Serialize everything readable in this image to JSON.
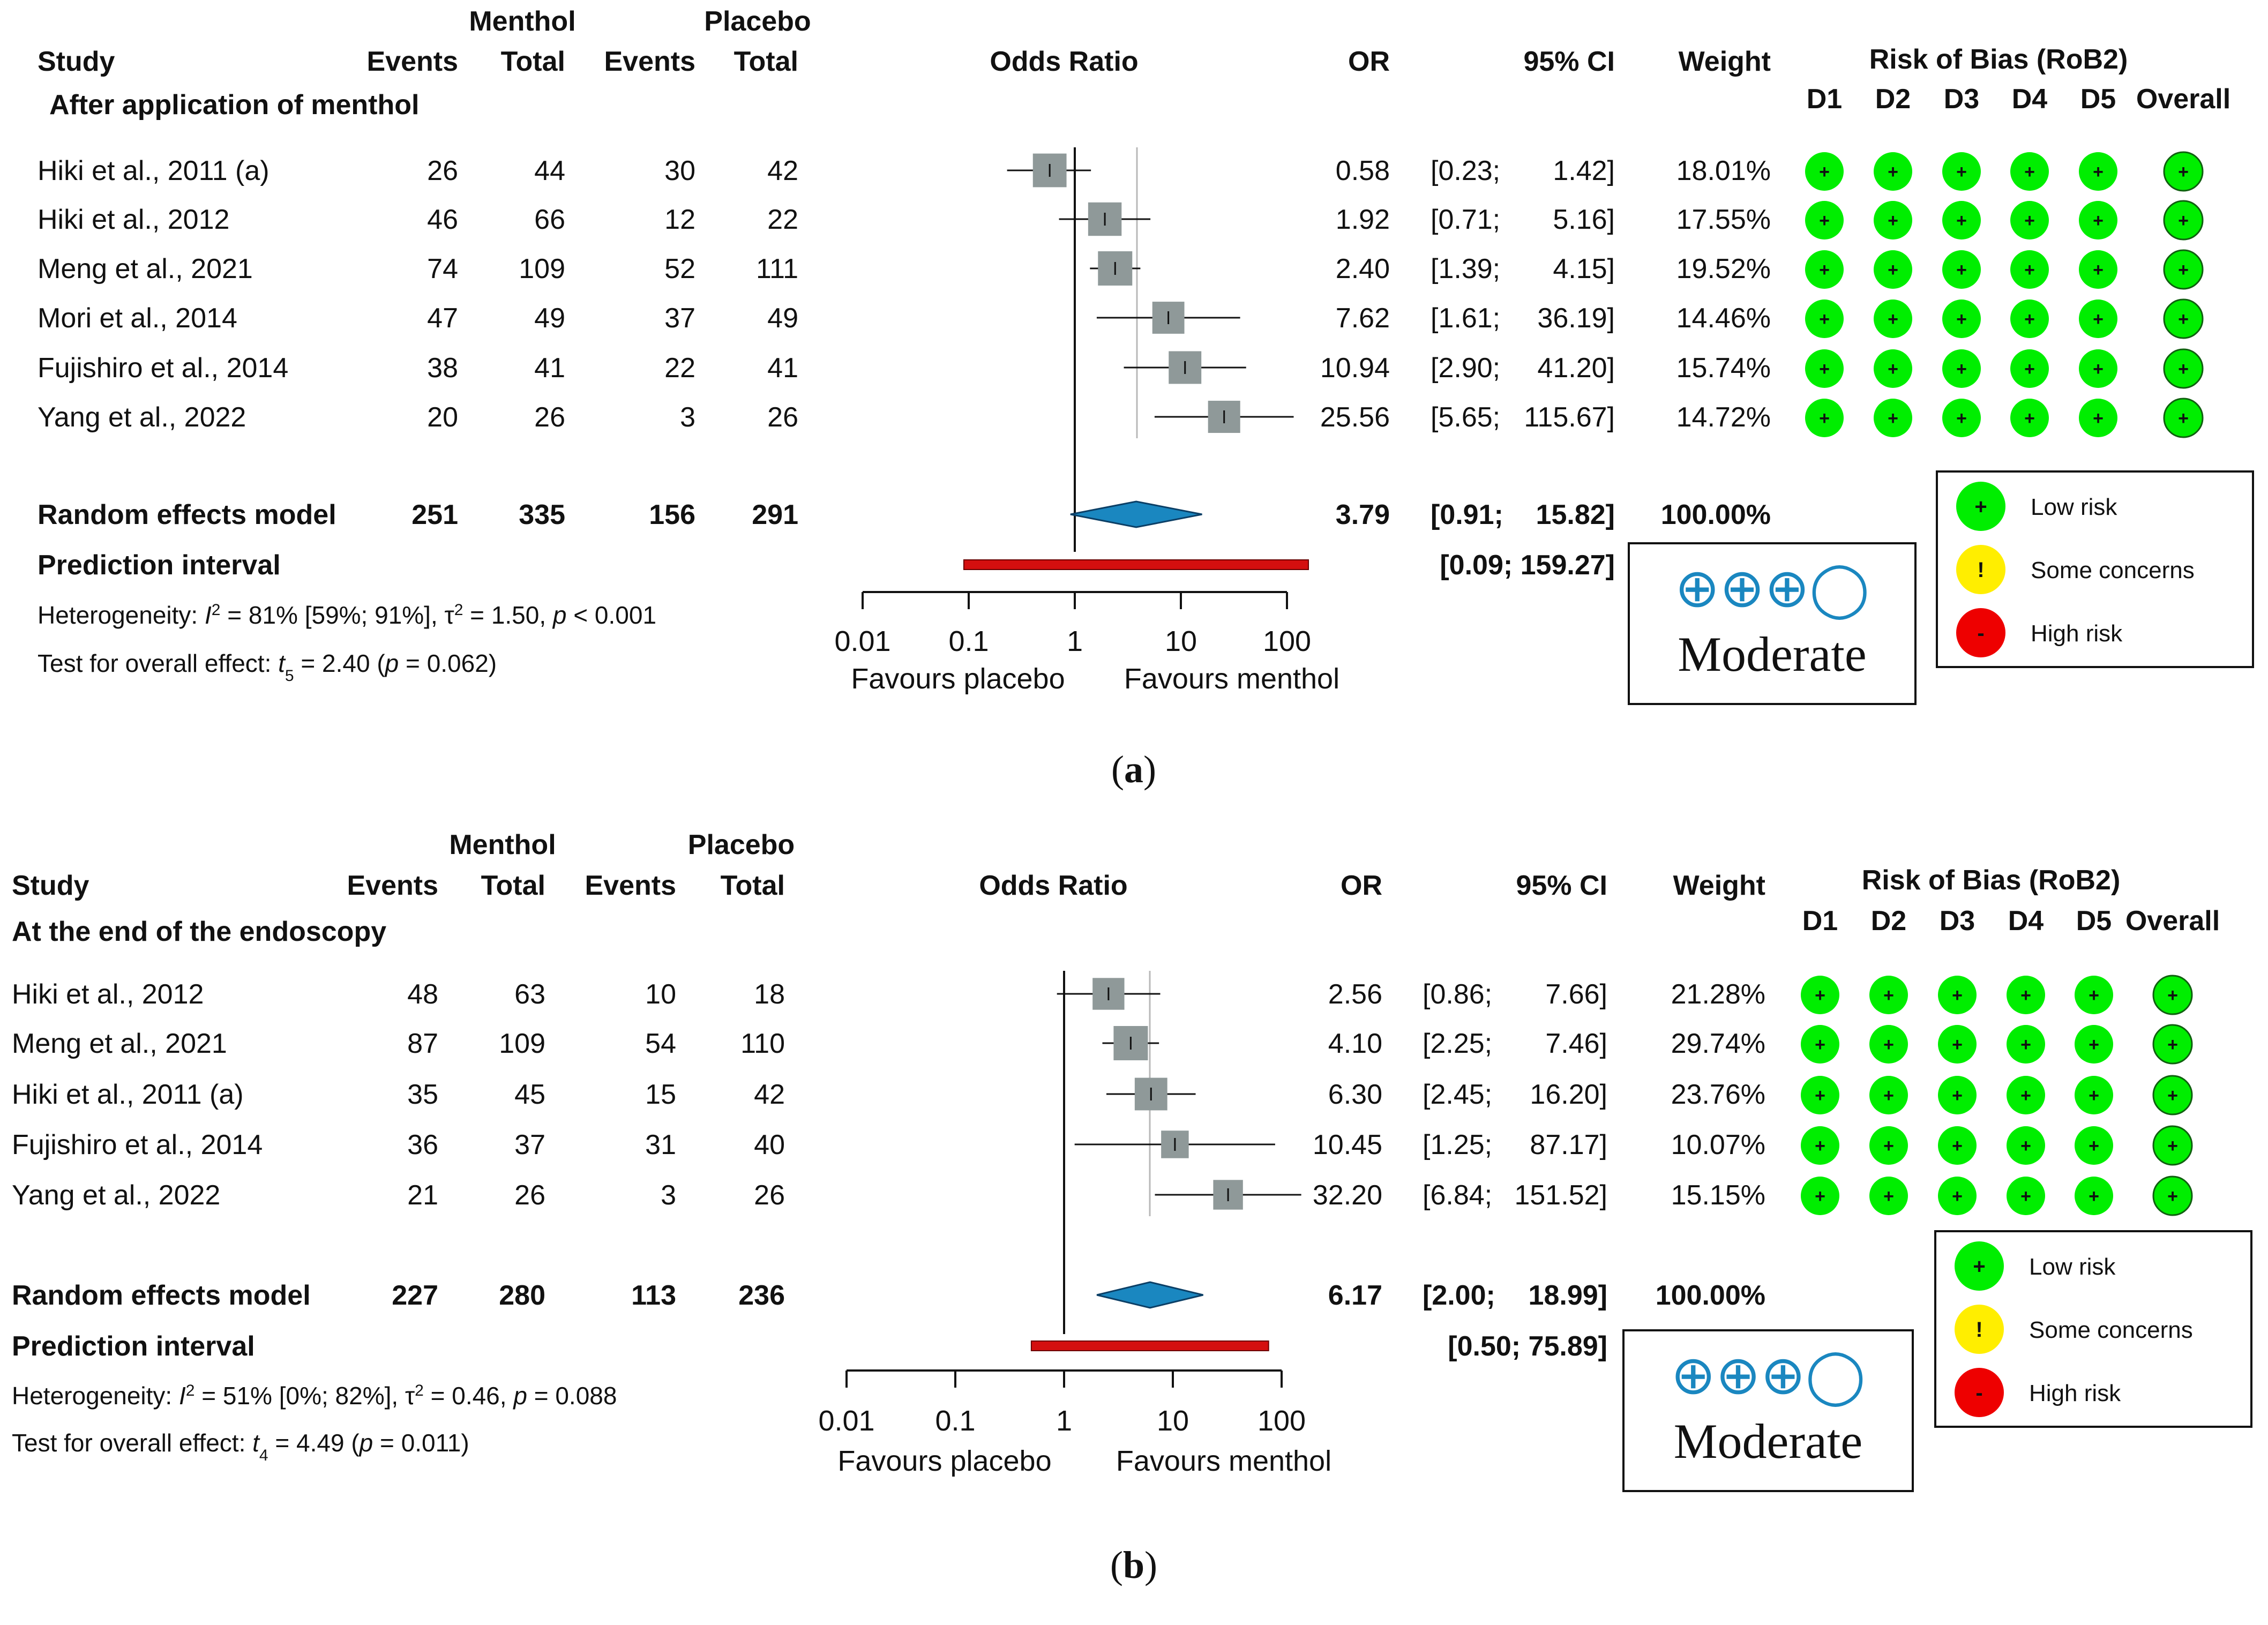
{
  "colors": {
    "square": "#8f9999",
    "diamond": "#1a87c0",
    "prediction": "#d40f0f",
    "low_risk": "#00ee00",
    "some_concerns": "#ffee00",
    "high_risk": "#ee0000",
    "grade_symbol": "#1a87c0"
  },
  "panels": [
    {
      "caption": "(a)",
      "header": {
        "study": "Study",
        "menthol": "Menthol",
        "placebo": "Placebo",
        "events": "Events",
        "total": "Total",
        "odds_ratio": "Odds Ratio",
        "or": "OR",
        "ci": "95% CI",
        "weight": "Weight",
        "rob_title": "Risk of Bias (RoB2)",
        "domains": [
          "D1",
          "D2",
          "D3",
          "D4",
          "D5",
          "Overall"
        ]
      },
      "subgroup": "After application of menthol",
      "studies": [
        {
          "name": "Hiki et al., 2011 (a)",
          "me": "26",
          "mt": "44",
          "pe": "30",
          "pt": "42",
          "or": "0.58",
          "ci_low": "0.23",
          "ci_high": "1.42",
          "weight": "18.01%",
          "rob": [
            "+",
            "+",
            "+",
            "+",
            "+",
            "+"
          ]
        },
        {
          "name": "Hiki et al., 2012",
          "me": "46",
          "mt": "66",
          "pe": "12",
          "pt": "22",
          "or": "1.92",
          "ci_low": "0.71",
          "ci_high": "5.16",
          "weight": "17.55%",
          "rob": [
            "+",
            "+",
            "+",
            "+",
            "+",
            "+"
          ]
        },
        {
          "name": "Meng et al., 2021",
          "me": "74",
          "mt": "109",
          "pe": "52",
          "pt": "111",
          "or": "2.40",
          "ci_low": "1.39",
          "ci_high": "4.15",
          "weight": "19.52%",
          "rob": [
            "+",
            "+",
            "+",
            "+",
            "+",
            "+"
          ]
        },
        {
          "name": "Mori et al., 2014",
          "me": "47",
          "mt": "49",
          "pe": "37",
          "pt": "49",
          "or": "7.62",
          "ci_low": "1.61",
          "ci_high": "36.19",
          "weight": "14.46%",
          "rob": [
            "+",
            "+",
            "+",
            "+",
            "+",
            "+"
          ]
        },
        {
          "name": "Fujishiro et al., 2014",
          "me": "38",
          "mt": "41",
          "pe": "22",
          "pt": "41",
          "or": "10.94",
          "ci_low": "2.90",
          "ci_high": "41.20",
          "weight": "15.74%",
          "rob": [
            "+",
            "+",
            "+",
            "+",
            "+",
            "+"
          ]
        },
        {
          "name": "Yang et al.,  2022",
          "me": "20",
          "mt": "26",
          "pe": "3",
          "pt": "26",
          "or": "25.56",
          "ci_low": "5.65",
          "ci_high": "115.67",
          "weight": "14.72%",
          "rob": [
            "+",
            "+",
            "+",
            "+",
            "+",
            "+"
          ]
        }
      ],
      "pooled": {
        "label": "Random effects model",
        "me": "251",
        "mt": "335",
        "pe": "156",
        "pt": "291",
        "or": "3.79",
        "ci_low": "0.91",
        "ci_high": "15.82",
        "weight": "100.00%"
      },
      "prediction": {
        "label": "Prediction interval",
        "low": "0.09",
        "high": "159.27"
      },
      "heterogeneity": {
        "prefix": "Heterogeneity: ",
        "sym": "I",
        "sup": "2",
        "body": " = 81% [59%; 91%], τ",
        "sup2": "2",
        "tail": " = 1.50, ",
        "p": "p",
        "pval": " < 0.001"
      },
      "overall": {
        "prefix": "Test for overall effect: ",
        "t": "t",
        "sub": "5",
        "body": " = 2.40 (",
        "p": "p",
        "tail": " = 0.062)"
      },
      "axis": {
        "ticks": [
          0.01,
          0.1,
          1,
          10,
          100
        ],
        "tick_labels": [
          "0.01",
          "0.1",
          "1",
          "10",
          "100"
        ],
        "left_label": "Favours placebo",
        "right_label": "Favours menthol"
      },
      "grade": {
        "symbols": "⊕⊕⊕◯",
        "label": "Moderate"
      },
      "legend": [
        "Low risk",
        "Some concerns",
        "High risk"
      ],
      "legend_symbols": [
        "+",
        "!",
        "-"
      ]
    },
    {
      "caption": "(b)",
      "header": {
        "study": "Study",
        "menthol": "Menthol",
        "placebo": "Placebo",
        "events": "Events",
        "total": "Total",
        "odds_ratio": "Odds Ratio",
        "or": "OR",
        "ci": "95% CI",
        "weight": "Weight",
        "rob_title": "Risk of Bias (RoB2)",
        "domains": [
          "D1",
          "D2",
          "D3",
          "D4",
          "D5",
          "Overall"
        ]
      },
      "subgroup": "At the end of the endoscopy",
      "studies": [
        {
          "name": "Hiki et al., 2012",
          "me": "48",
          "mt": "63",
          "pe": "10",
          "pt": "18",
          "or": "2.56",
          "ci_low": "0.86",
          "ci_high": "7.66",
          "weight": "21.28%",
          "rob": [
            "+",
            "+",
            "+",
            "+",
            "+",
            "+"
          ]
        },
        {
          "name": "Meng et al., 2021",
          "me": "87",
          "mt": "109",
          "pe": "54",
          "pt": "110",
          "or": "4.10",
          "ci_low": "2.25",
          "ci_high": "7.46",
          "weight": "29.74%",
          "rob": [
            "+",
            "+",
            "+",
            "+",
            "+",
            "+"
          ]
        },
        {
          "name": "Hiki et al., 2011 (a)",
          "me": "35",
          "mt": "45",
          "pe": "15",
          "pt": "42",
          "or": "6.30",
          "ci_low": "2.45",
          "ci_high": "16.20",
          "weight": "23.76%",
          "rob": [
            "+",
            "+",
            "+",
            "+",
            "+",
            "+"
          ]
        },
        {
          "name": "Fujishiro et al., 2014",
          "me": "36",
          "mt": "37",
          "pe": "31",
          "pt": "40",
          "or": "10.45",
          "ci_low": "1.25",
          "ci_high": "87.17",
          "weight": "10.07%",
          "rob": [
            "+",
            "+",
            "+",
            "+",
            "+",
            "+"
          ]
        },
        {
          "name": "Yang et al.,  2022",
          "me": "21",
          "mt": "26",
          "pe": "3",
          "pt": "26",
          "or": "32.20",
          "ci_low": "6.84",
          "ci_high": "151.52",
          "weight": "15.15%",
          "rob": [
            "+",
            "+",
            "+",
            "+",
            "+",
            "+"
          ]
        }
      ],
      "pooled": {
        "label": "Random effects model",
        "me": "227",
        "mt": "280",
        "pe": "113",
        "pt": "236",
        "or": "6.17",
        "ci_low": "2.00",
        "ci_high": "18.99",
        "weight": "100.00%"
      },
      "prediction": {
        "label": "Prediction interval",
        "low": "0.50",
        "high": "75.89"
      },
      "heterogeneity": {
        "prefix": "Heterogeneity: ",
        "sym": "I",
        "sup": "2",
        "body": " = 51% [0%; 82%], τ",
        "sup2": "2",
        "tail": " = 0.46, ",
        "p": "p",
        "pval": " = 0.088"
      },
      "overall": {
        "prefix": "Test for overall effect: ",
        "t": "t",
        "sub": "4",
        "body": " = 4.49 (",
        "p": "p",
        "tail": " = 0.011)"
      },
      "axis": {
        "ticks": [
          0.01,
          0.1,
          1,
          10,
          100
        ],
        "tick_labels": [
          "0.01",
          "0.1",
          "1",
          "10",
          "100"
        ],
        "left_label": "Favours placebo",
        "right_label": "Favours menthol"
      },
      "grade": {
        "symbols": "⊕⊕⊕◯",
        "label": "Moderate"
      },
      "legend": [
        "Low risk",
        "Some concerns",
        "High risk"
      ],
      "legend_symbols": [
        "+",
        "!",
        "-"
      ]
    }
  ],
  "chart_data": [
    {
      "type": "forest",
      "caption": "(a)",
      "subgroup": "After application of menthol",
      "x_scale": "log",
      "xlim": [
        0.01,
        100
      ],
      "null_value": 1,
      "studies": [
        {
          "name": "Hiki et al., 2011 (a)",
          "or": 0.58,
          "ci": [
            0.23,
            1.42
          ],
          "weight": 18.01
        },
        {
          "name": "Hiki et al., 2012",
          "or": 1.92,
          "ci": [
            0.71,
            5.16
          ],
          "weight": 17.55
        },
        {
          "name": "Meng et al., 2021",
          "or": 2.4,
          "ci": [
            1.39,
            4.15
          ],
          "weight": 19.52
        },
        {
          "name": "Mori et al., 2014",
          "or": 7.62,
          "ci": [
            1.61,
            36.19
          ],
          "weight": 14.46
        },
        {
          "name": "Fujishiro et al., 2014",
          "or": 10.94,
          "ci": [
            2.9,
            41.2
          ],
          "weight": 15.74
        },
        {
          "name": "Yang et al.,  2022",
          "or": 25.56,
          "ci": [
            5.65,
            115.67
          ],
          "weight": 14.72
        }
      ],
      "pooled": {
        "or": 3.79,
        "ci": [
          0.91,
          15.82
        ]
      },
      "prediction_interval": [
        0.09,
        159.27
      ]
    },
    {
      "type": "forest",
      "caption": "(b)",
      "subgroup": "At the end of the endoscopy",
      "x_scale": "log",
      "xlim": [
        0.01,
        100
      ],
      "null_value": 1,
      "studies": [
        {
          "name": "Hiki et al., 2012",
          "or": 2.56,
          "ci": [
            0.86,
            7.66
          ],
          "weight": 21.28
        },
        {
          "name": "Meng et al., 2021",
          "or": 4.1,
          "ci": [
            2.25,
            7.46
          ],
          "weight": 29.74
        },
        {
          "name": "Hiki et al., 2011 (a)",
          "or": 6.3,
          "ci": [
            2.45,
            16.2
          ],
          "weight": 23.76
        },
        {
          "name": "Fujishiro et al., 2014",
          "or": 10.45,
          "ci": [
            1.25,
            87.17
          ],
          "weight": 10.07
        },
        {
          "name": "Yang et al.,  2022",
          "or": 32.2,
          "ci": [
            6.84,
            151.52
          ],
          "weight": 15.15
        }
      ],
      "pooled": {
        "or": 6.17,
        "ci": [
          2.0,
          18.99
        ]
      },
      "prediction_interval": [
        0.5,
        75.89
      ]
    }
  ]
}
